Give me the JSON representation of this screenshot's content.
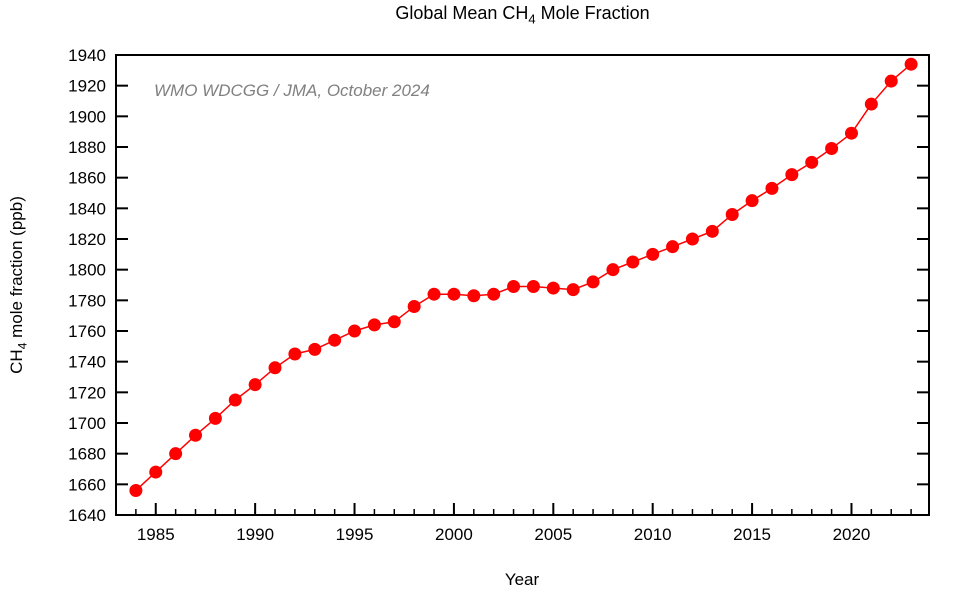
{
  "title": {
    "part1": "Global Mean CH",
    "sub": "4",
    "part2": "  Mole Fraction"
  },
  "annotation": {
    "text": "WMO WDCGG / JMA, October 2024",
    "color": "#808080"
  },
  "axes": {
    "y_label_part1": "CH",
    "y_label_sub": "4",
    "y_label_part2": " mole fraction (ppb)",
    "x_label": "Year"
  },
  "chart_data": {
    "type": "line",
    "title": "Global Mean CH4 Mole Fraction",
    "xlabel": "Year",
    "ylabel": "CH4 mole fraction (ppb)",
    "series_name": "Global mean CH4 mole fraction",
    "marker": "filled-circle",
    "line_color": "#ff0000",
    "axis_color": "#000000",
    "grid": false,
    "legend_position": "none",
    "xlim": [
      1983.0,
      2023.9
    ],
    "ylim": [
      1640,
      1940
    ],
    "y_tick_step": 20,
    "x_major_ticks": [
      1985,
      1990,
      1995,
      2000,
      2005,
      2010,
      2015,
      2020
    ],
    "x_minor_step": 1,
    "x": [
      1984,
      1985,
      1986,
      1987,
      1988,
      1989,
      1990,
      1991,
      1992,
      1993,
      1994,
      1995,
      1996,
      1997,
      1998,
      1999,
      2000,
      2001,
      2002,
      2003,
      2004,
      2005,
      2006,
      2007,
      2008,
      2009,
      2010,
      2011,
      2012,
      2013,
      2014,
      2015,
      2016,
      2017,
      2018,
      2019,
      2020,
      2021,
      2022,
      2023
    ],
    "values": [
      1656,
      1668,
      1680,
      1692,
      1703,
      1715,
      1725,
      1736,
      1745,
      1748,
      1754,
      1760,
      1764,
      1766,
      1776,
      1784,
      1784,
      1783,
      1784,
      1789,
      1789,
      1788,
      1787,
      1792,
      1800,
      1805,
      1810,
      1815,
      1820,
      1825,
      1836,
      1845,
      1853,
      1862,
      1870,
      1879,
      1889,
      1908,
      1923,
      1934
    ]
  }
}
